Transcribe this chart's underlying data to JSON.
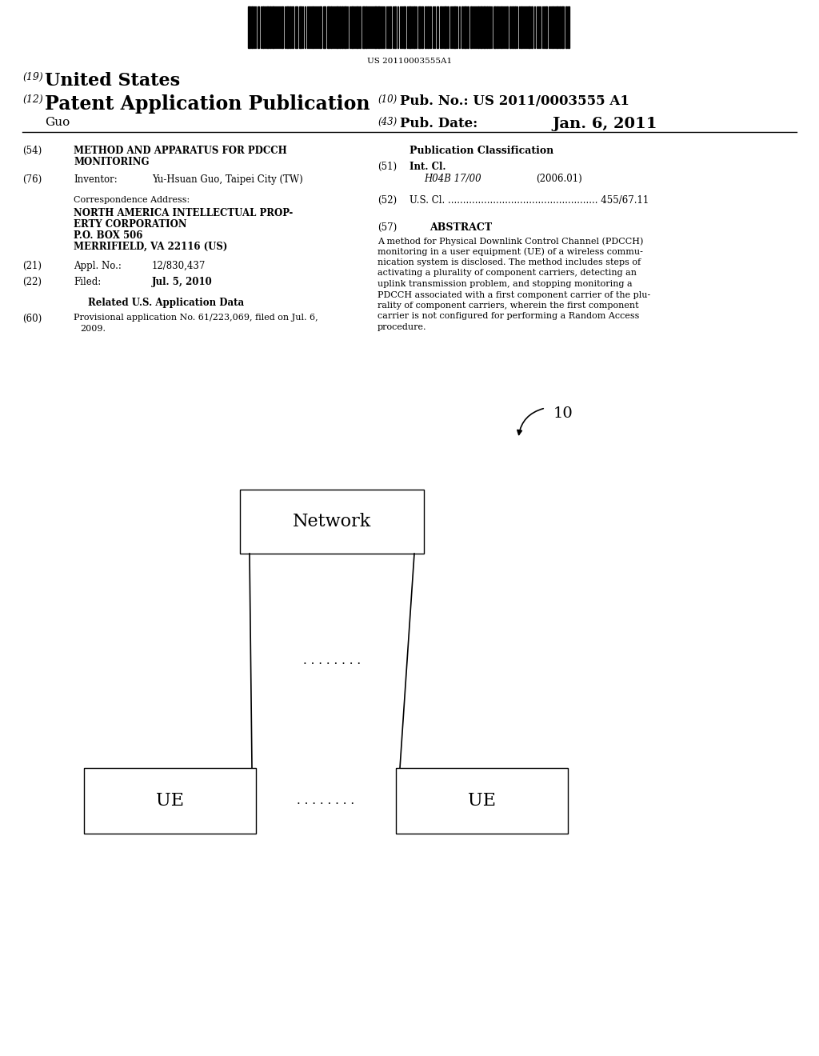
{
  "bg_color": "#ffffff",
  "barcode_text": "US 20110003555A1",
  "patent_number_label": "(19)",
  "patent_number_text": "United States",
  "pub_type_label": "(12)",
  "pub_type_text": "Patent Application Publication",
  "inventor_name": "Guo",
  "pub_no_label": "(10)",
  "pub_no_text": "Pub. No.: US 2011/0003555 A1",
  "pub_date_label": "(43)",
  "pub_date_text": "Pub. Date:",
  "pub_date_value": "Jan. 6, 2011",
  "pub_class_header": "Publication Classification",
  "int_cl_label": "(51)",
  "int_cl_text": "Int. Cl.",
  "int_cl_class": "H04B 17/00",
  "int_cl_year": "(2006.01)",
  "us_cl_label": "(52)",
  "us_cl_text": "U.S. Cl. .................................................. 455/67.11",
  "abstract_label": "(57)",
  "abstract_header": "ABSTRACT",
  "inventor_label": "(76)",
  "inventor_label_text": "Inventor:",
  "inventor_value": "Yu-Hsuan Guo, Taipei City (TW)",
  "corr_addr_text": "Correspondence Address:",
  "corr_addr_line1": "NORTH AMERICA INTELLECTUAL PROP-",
  "corr_addr_line2": "ERTY CORPORATION",
  "corr_addr_line3": "P.O. BOX 506",
  "corr_addr_line4": "MERRIFIELD, VA 22116 (US)",
  "appl_label": "(21)",
  "appl_label_text": "Appl. No.:",
  "appl_value": "12/830,437",
  "filed_label": "(22)",
  "filed_label_text": "Filed:",
  "filed_value": "Jul. 5, 2010",
  "related_header": "Related U.S. Application Data",
  "prov_label": "(60)",
  "prov_line1": "Provisional application No. 61/223,069, filed on Jul. 6,",
  "prov_line2": "2009.",
  "title_label": "(54)",
  "title_line1": "METHOD AND APPARATUS FOR PDCCH",
  "title_line2": "MONITORING",
  "diagram_label": "10",
  "network_label": "Network",
  "ue_label": "UE",
  "dots": ". . . . . . . .",
  "abstract_lines": [
    "A method for Physical Downlink Control Channel (PDCCH)",
    "monitoring in a user equipment (UE) of a wireless commu-",
    "nication system is disclosed. The method includes steps of",
    "activating a plurality of component carriers, detecting an",
    "uplink transmission problem, and stopping monitoring a",
    "PDCCH associated with a first component carrier of the plu-",
    "rality of component carriers, wherein the first component",
    "carrier is not configured for performing a Random Access",
    "procedure."
  ]
}
